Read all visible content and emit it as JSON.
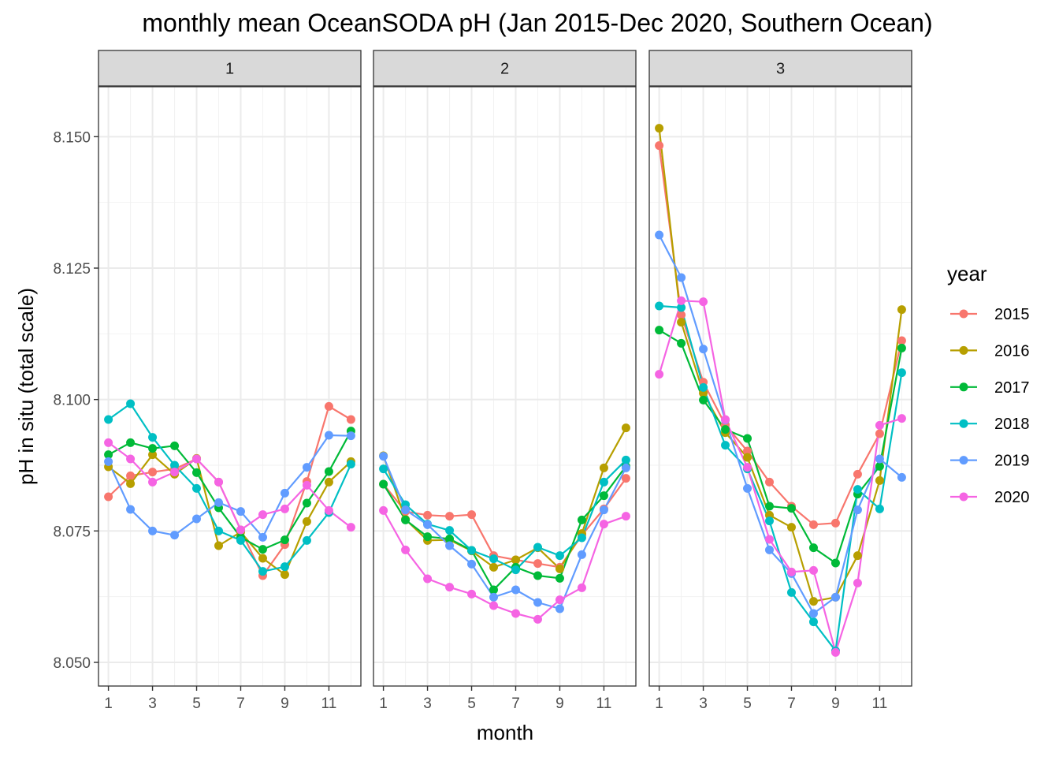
{
  "title": "monthly mean OceanSODA pH (Jan 2015-Dec 2020, Southern Ocean)",
  "chart_data": {
    "type": "line",
    "title": "monthly mean OceanSODA pH (Jan 2015-Dec 2020, Southern Ocean)",
    "xlabel": "month",
    "ylabel": "pH in situ (total scale)",
    "xlim": [
      0.55,
      12.45
    ],
    "ylim": [
      8.0455,
      8.1595
    ],
    "x_ticks": [
      1,
      3,
      5,
      7,
      9,
      11
    ],
    "x_tick_labels": [
      "1",
      "3",
      "5",
      "7",
      "9",
      "11"
    ],
    "y_ticks": [
      8.05,
      8.075,
      8.1,
      8.125,
      8.15
    ],
    "y_tick_labels": [
      "8.050",
      "8.075",
      "8.100",
      "8.125",
      "8.150"
    ],
    "grid": true,
    "legend": {
      "title": "year",
      "position": "right"
    },
    "x": [
      1,
      2,
      3,
      4,
      5,
      6,
      7,
      8,
      9,
      10,
      11,
      12
    ],
    "facets": [
      {
        "label": "1",
        "series": [
          {
            "name": "2015",
            "color": "#F8766D",
            "values": [
              8.0815,
              8.0855,
              8.0862,
              8.0868,
              8.0887,
              8.0843,
              8.0752,
              8.0665,
              8.0724,
              8.0844,
              8.0987,
              8.0962
            ]
          },
          {
            "name": "2016",
            "color": "#B79F00",
            "values": [
              8.0872,
              8.084,
              8.0895,
              8.0858,
              8.0888,
              8.0722,
              8.0748,
              8.0698,
              8.0667,
              8.0768,
              8.0843,
              8.0882
            ]
          },
          {
            "name": "2017",
            "color": "#00BA38",
            "values": [
              8.0895,
              8.0918,
              8.0907,
              8.0912,
              8.0861,
              8.0794,
              8.0738,
              8.0715,
              8.0733,
              8.0803,
              8.0863,
              8.094
            ]
          },
          {
            "name": "2018",
            "color": "#00BFC4",
            "values": [
              8.0962,
              8.0992,
              8.0928,
              8.0875,
              8.0831,
              8.075,
              8.0732,
              8.0673,
              8.0682,
              8.0732,
              8.0785,
              8.0877
            ]
          },
          {
            "name": "2019",
            "color": "#619CFF",
            "values": [
              8.0882,
              8.0791,
              8.075,
              8.0742,
              8.0773,
              8.0804,
              8.0787,
              8.0738,
              8.0822,
              8.0871,
              8.0932,
              8.0931
            ]
          },
          {
            "name": "2020",
            "color": "#F564E3",
            "values": [
              8.0918,
              8.0887,
              8.0843,
              8.0862,
              8.0887,
              8.0843,
              8.0752,
              8.0781,
              8.0792,
              8.0837,
              8.0789,
              8.0757
            ]
          }
        ]
      },
      {
        "label": "2",
        "series": [
          {
            "name": "2015",
            "color": "#F8766D",
            "values": [
              8.0839,
              8.0787,
              8.078,
              8.0778,
              8.0781,
              8.0703,
              8.0695,
              8.0688,
              8.0681,
              8.0742,
              8.0792,
              8.085
            ]
          },
          {
            "name": "2016",
            "color": "#B79F00",
            "values": [
              8.0893,
              8.0772,
              8.0732,
              8.0733,
              8.0712,
              8.0681,
              8.0695,
              8.0718,
              8.0678,
              8.0745,
              8.087,
              8.0946
            ]
          },
          {
            "name": "2017",
            "color": "#00BA38",
            "values": [
              8.0839,
              8.0771,
              8.0739,
              8.0735,
              8.0713,
              8.0638,
              8.0681,
              8.0665,
              8.066,
              8.0771,
              8.0817,
              8.0873
            ]
          },
          {
            "name": "2018",
            "color": "#00BFC4",
            "values": [
              8.0868,
              8.08,
              8.0763,
              8.0751,
              8.0713,
              8.0697,
              8.0676,
              8.0719,
              8.0703,
              8.0737,
              8.0843,
              8.0885
            ]
          },
          {
            "name": "2019",
            "color": "#619CFF",
            "values": [
              8.0892,
              8.079,
              8.0762,
              8.0722,
              8.0687,
              8.0624,
              8.0638,
              8.0614,
              8.0602,
              8.0705,
              8.079,
              8.087
            ]
          },
          {
            "name": "2020",
            "color": "#F564E3",
            "values": [
              8.0789,
              8.0714,
              8.0659,
              8.0643,
              8.063,
              8.0608,
              8.0593,
              8.0582,
              8.0619,
              8.0642,
              8.0763,
              8.0778
            ]
          }
        ]
      },
      {
        "label": "3",
        "series": [
          {
            "name": "2015",
            "color": "#F8766D",
            "values": [
              8.1483,
              8.1161,
              8.1033,
              8.0952,
              8.0902,
              8.0843,
              8.0797,
              8.0762,
              8.0765,
              8.0858,
              8.0935,
              8.1112
            ]
          },
          {
            "name": "2016",
            "color": "#B79F00",
            "values": [
              8.1516,
              8.1147,
              8.1012,
              8.0937,
              8.089,
              8.078,
              8.0757,
              8.0616,
              8.0624,
              8.0703,
              8.0846,
              8.1171
            ]
          },
          {
            "name": "2017",
            "color": "#00BA38",
            "values": [
              8.1132,
              8.1107,
              8.0999,
              8.0943,
              8.0926,
              8.0797,
              8.0793,
              8.0718,
              8.0689,
              8.082,
              8.0873,
              8.1098
            ]
          },
          {
            "name": "2018",
            "color": "#00BFC4",
            "values": [
              8.1178,
              8.1175,
              8.1023,
              8.0913,
              8.0868,
              8.0769,
              8.0633,
              8.0577,
              8.0522,
              8.0829,
              8.0792,
              8.1051
            ]
          },
          {
            "name": "2019",
            "color": "#619CFF",
            "values": [
              8.1313,
              8.1232,
              8.1096,
              8.0961,
              8.0831,
              8.0714,
              8.0669,
              8.0593,
              8.0624,
              8.079,
              8.0887,
              8.0852
            ]
          },
          {
            "name": "2020",
            "color": "#F564E3",
            "values": [
              8.1048,
              8.1188,
              8.1186,
              8.0962,
              8.0871,
              8.0734,
              8.0672,
              8.0675,
              8.0519,
              8.0651,
              8.0951,
              8.0964
            ]
          }
        ]
      }
    ]
  }
}
